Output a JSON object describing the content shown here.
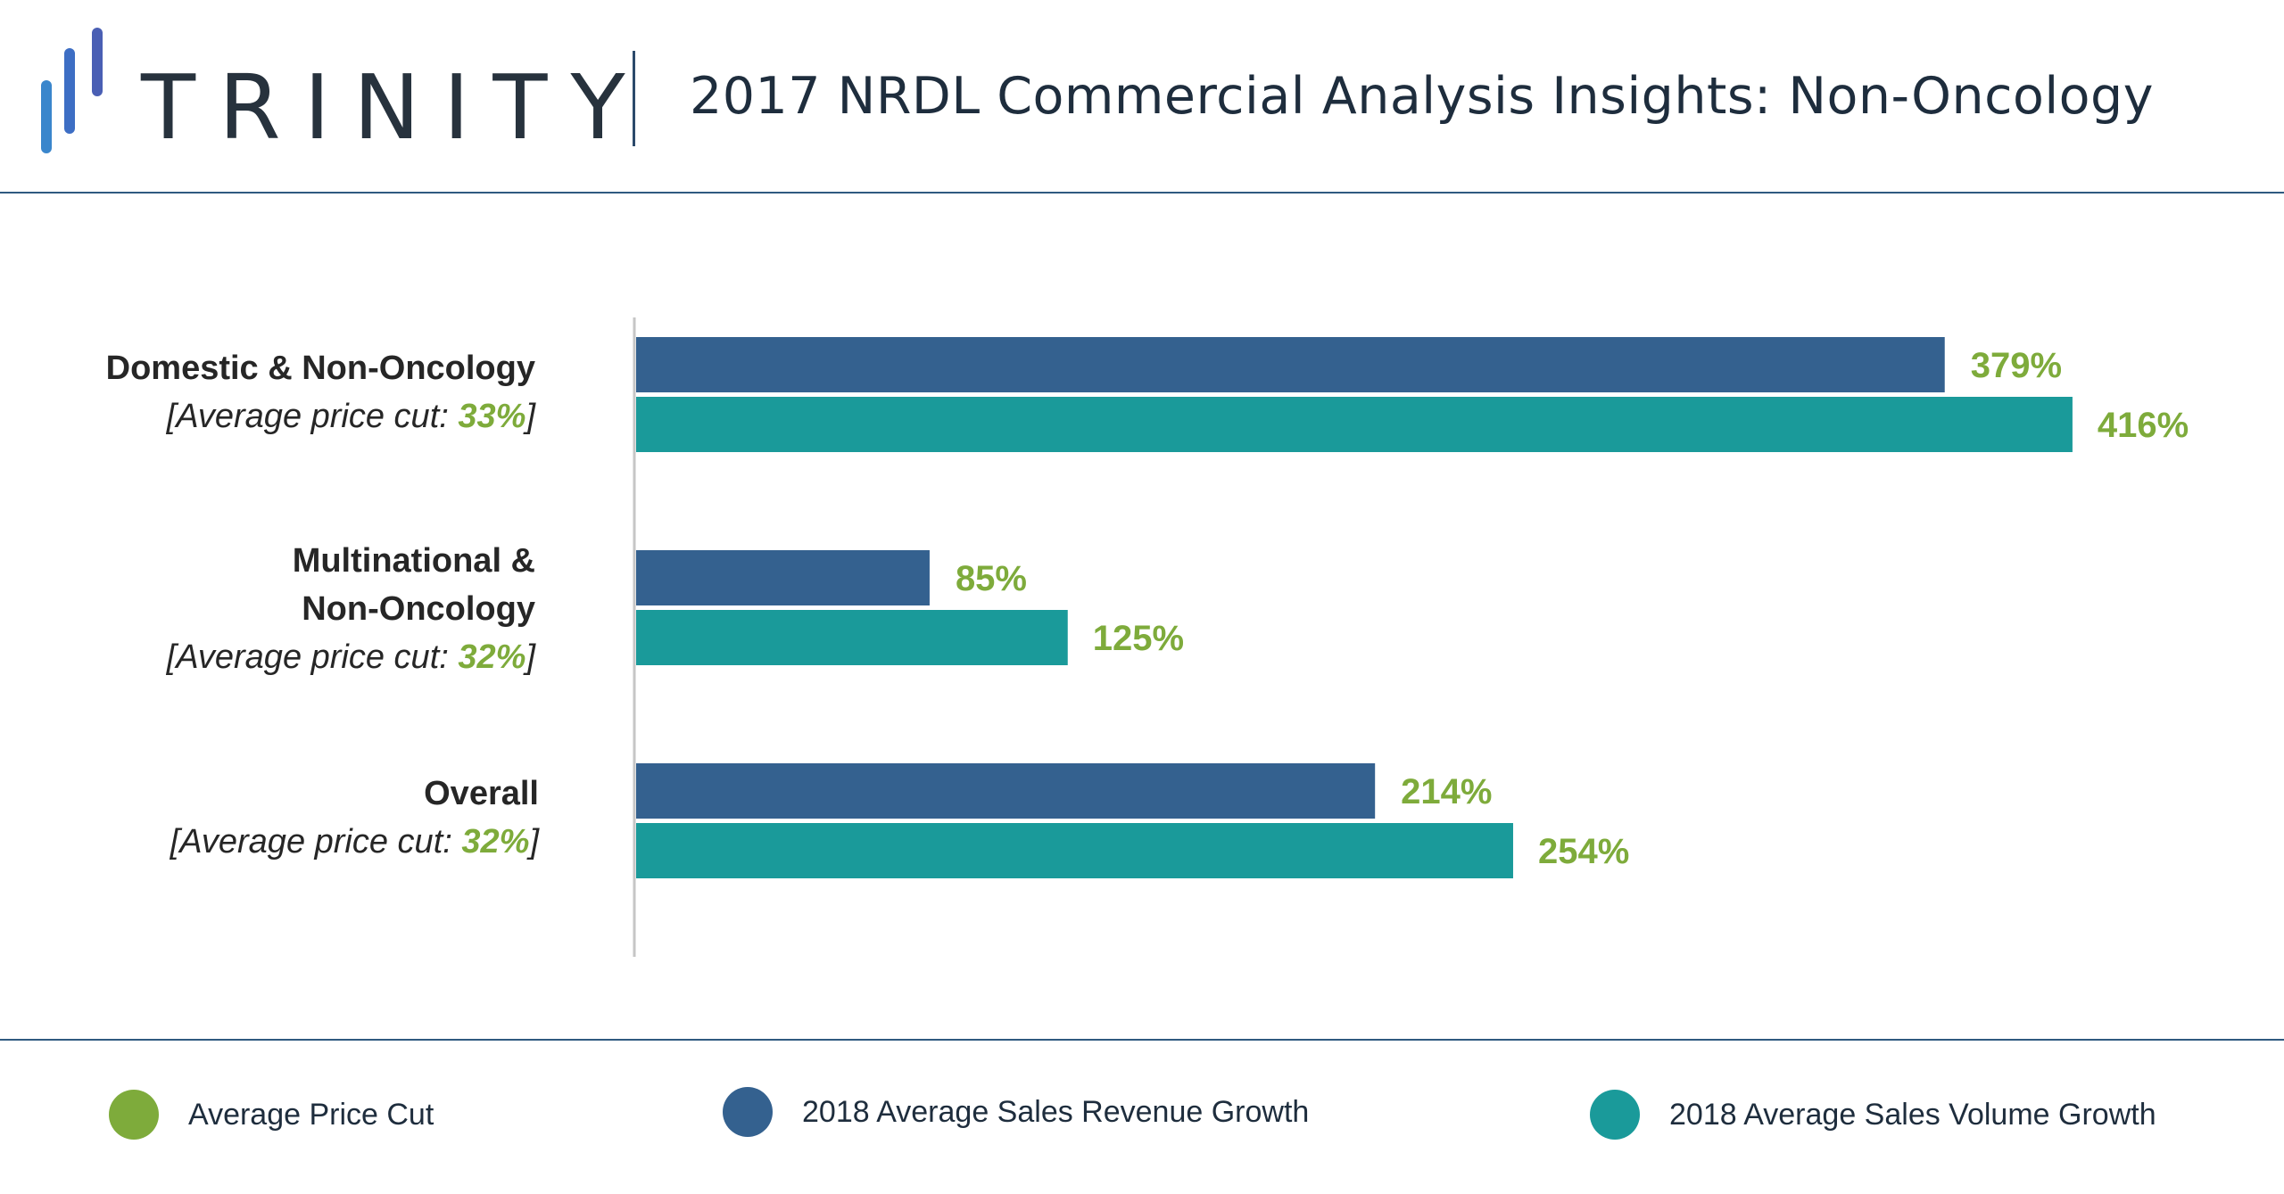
{
  "header": {
    "logo_text": "TRINITY",
    "title": "2017 NRDL Commercial Analysis Insights: Non-Oncology"
  },
  "colors": {
    "revenue": "#34618f",
    "volume": "#1a9a9a",
    "price_cut": "#7eab3b",
    "axis": "#c6c6c6",
    "logo_bars": [
      "#3a86cc",
      "#3d6ec4",
      "#4a5fb4"
    ]
  },
  "categories": [
    {
      "name_lines": [
        "Domestic & Non-Oncology"
      ],
      "sub_prefix": "[Average price cut: ",
      "price_cut": "33%",
      "sub_suffix": "]"
    },
    {
      "name_lines": [
        "Multinational &",
        "Non-Oncology"
      ],
      "sub_prefix": "[Average price cut: ",
      "price_cut": "32%",
      "sub_suffix": "]"
    },
    {
      "name_lines": [
        "Overall"
      ],
      "sub_prefix": "[Average price cut: ",
      "price_cut": "32%",
      "sub_suffix": "]"
    }
  ],
  "legend": [
    {
      "label": "Average Price Cut",
      "color_key": "price_cut"
    },
    {
      "label": "2018 Average Sales Revenue Growth",
      "color_key": "revenue"
    },
    {
      "label": "2018 Average Sales Volume Growth",
      "color_key": "volume"
    }
  ],
  "chart_data": {
    "type": "bar",
    "orientation": "horizontal",
    "title": "2017 NRDL Commercial Analysis Insights: Non-Oncology",
    "categories": [
      "Domestic & Non-Oncology [Average price cut: 33%]",
      "Multinational & Non-Oncology [Average price cut: 32%]",
      "Overall [Average price cut: 32%]"
    ],
    "price_cut_percent": [
      33,
      32,
      32
    ],
    "series": [
      {
        "name": "2018 Average Sales Revenue Growth",
        "values": [
          379,
          85,
          214
        ],
        "labels": [
          "379%",
          "85%",
          "214%"
        ],
        "color": "#34618f"
      },
      {
        "name": "2018 Average Sales Volume Growth",
        "values": [
          416,
          125,
          254
        ],
        "labels": [
          "416%",
          "125%",
          "254%"
        ],
        "color": "#1a9a9a"
      }
    ],
    "xlabel": "",
    "ylabel": "",
    "xlim": [
      0,
      450
    ],
    "grid": false,
    "axis_ticks": false,
    "data_labels": true,
    "data_label_color": "#7eab3b",
    "legend_position": "bottom"
  }
}
